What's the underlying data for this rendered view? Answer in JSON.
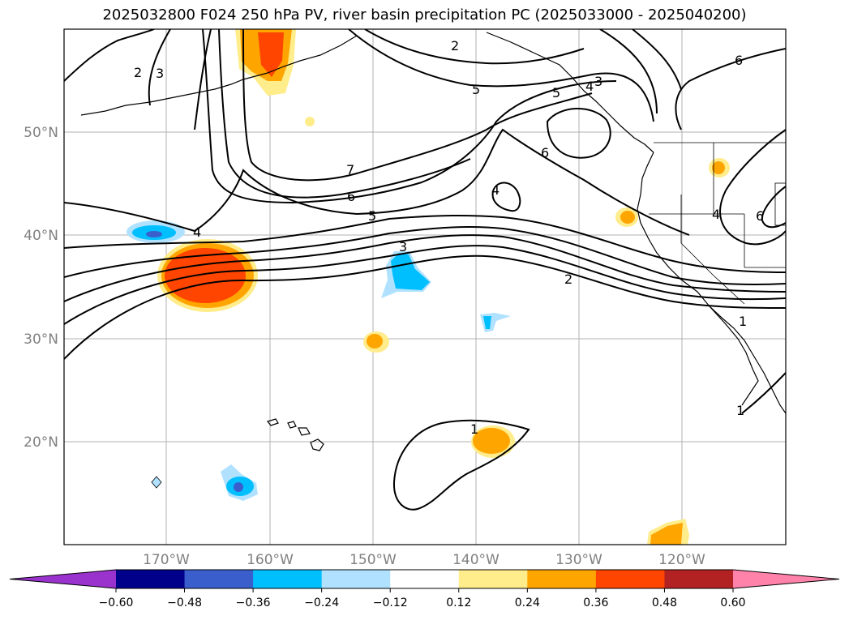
{
  "title": "2025032800 F024 250 hPa PV, river basin precipitation PC (2025033000 - 2025040200)",
  "map": {
    "lat_labels": [
      "50°N",
      "40°N",
      "30°N",
      "20°N"
    ],
    "lon_labels": [
      "170°W",
      "160°W",
      "150°W",
      "140°W",
      "130°W",
      "120°W"
    ],
    "gridlines": true,
    "contour_color": "#000000",
    "grid_color": "#b0b0b0"
  },
  "contour_labels": [
    "2",
    "3",
    "4",
    "5",
    "6",
    "7",
    "3",
    "2",
    "1",
    "4",
    "5",
    "6",
    "4",
    "6",
    "5",
    "3",
    "4",
    "2",
    "6",
    "1",
    "1"
  ],
  "colorbar": {
    "ticks": [
      "−0.60",
      "−0.48",
      "−0.36",
      "−0.24",
      "−0.12",
      "0.12",
      "0.24",
      "0.36",
      "0.48",
      "0.60"
    ],
    "colors": [
      "#9a32cd",
      "#00008b",
      "#3a5fcd",
      "#00bfff",
      "#b0e2ff",
      "#ffffff",
      "#ffec8b",
      "#ffa500",
      "#ff4500",
      "#b22222",
      "#ff82ab"
    ]
  }
}
